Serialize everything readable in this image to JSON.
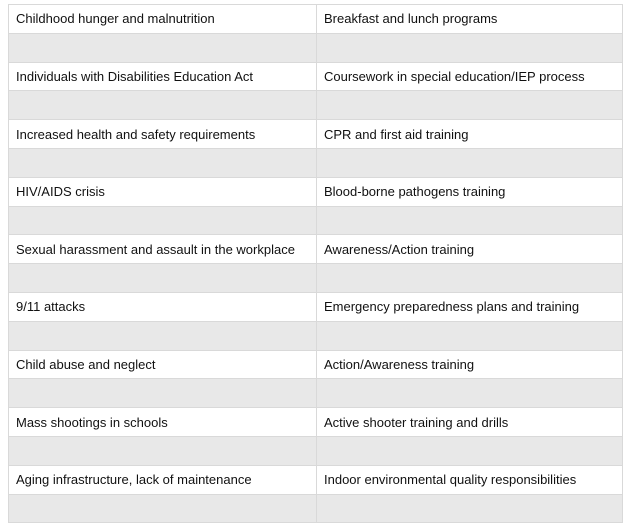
{
  "table": {
    "rows": [
      [
        "Childhood hunger and malnutrition",
        "Breakfast and lunch programs"
      ],
      [
        "Individuals with Disabilities Education Act",
        "Coursework in special education/IEP process"
      ],
      [
        "Increased health and safety requirements",
        "CPR and first aid training"
      ],
      [
        "HIV/AIDS crisis",
        "Blood-borne pathogens training"
      ],
      [
        "Sexual harassment and assault in the workplace",
        "Awareness/Action training"
      ],
      [
        "9/11 attacks",
        "Emergency preparedness plans and training"
      ],
      [
        "Child abuse and neglect",
        "Action/Awareness training"
      ],
      [
        "Mass shootings in schools",
        "Active shooter training and drills"
      ],
      [
        "Aging infrastructure, lack of maintenance",
        "Indoor environmental quality responsibilities"
      ]
    ],
    "colors": {
      "blank_row": "#e8e8e8",
      "border": "#d9d9d9"
    }
  }
}
